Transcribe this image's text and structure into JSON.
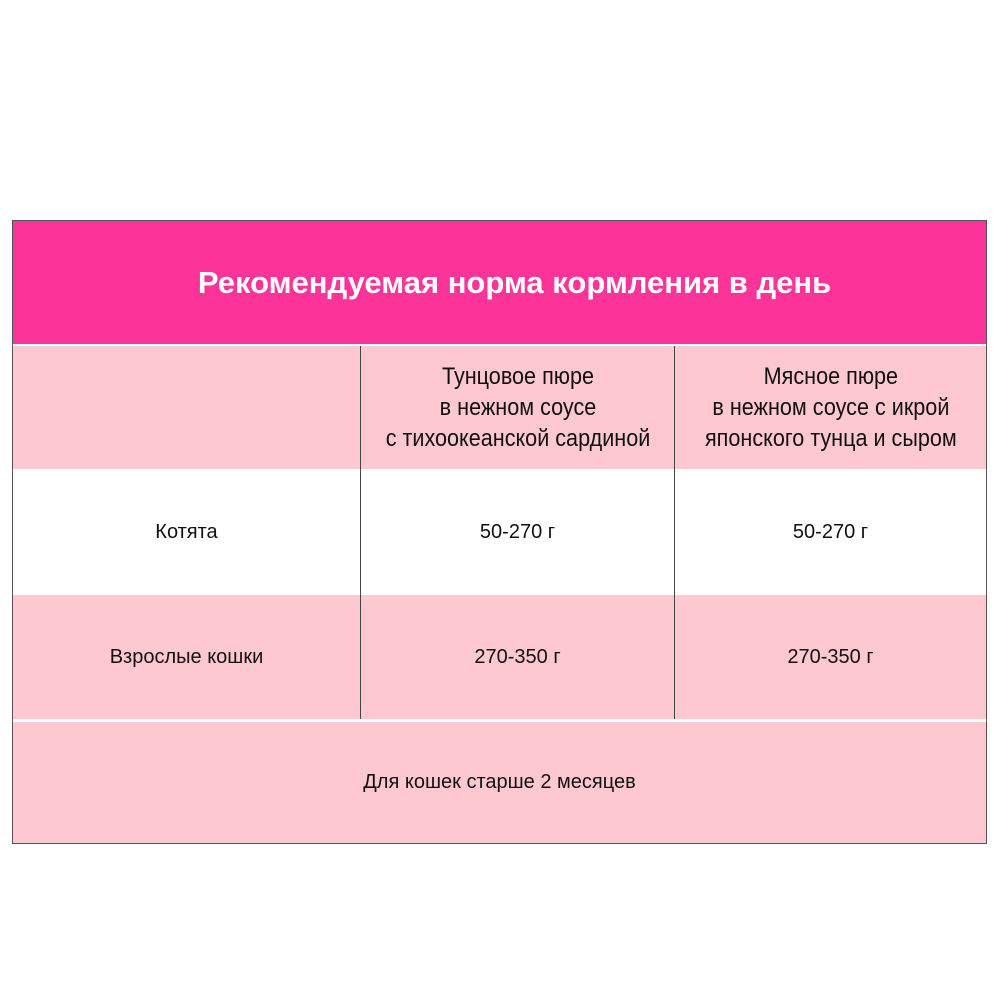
{
  "title": "Рекомендуемая норма кормления в день",
  "columns": [
    "",
    [
      "Тунцовое пюре",
      "в нежном соусе",
      "с тихоокеанской сардиной"
    ],
    [
      "Мясное пюре",
      "в нежном соусе с икрой",
      "японского тунца и сыром"
    ]
  ],
  "rows": [
    {
      "label": "Котята",
      "values": [
        "50-270 г",
        "50-270 г"
      ]
    },
    {
      "label": "Взрослые кошки",
      "values": [
        "270-350 г",
        "270-350 г"
      ]
    }
  ],
  "footer": "Для кошек старше 2 месяцев",
  "colors": {
    "title_bg": "#fc3399",
    "row_pink": "#fec8d0",
    "row_white": "#ffffff"
  }
}
